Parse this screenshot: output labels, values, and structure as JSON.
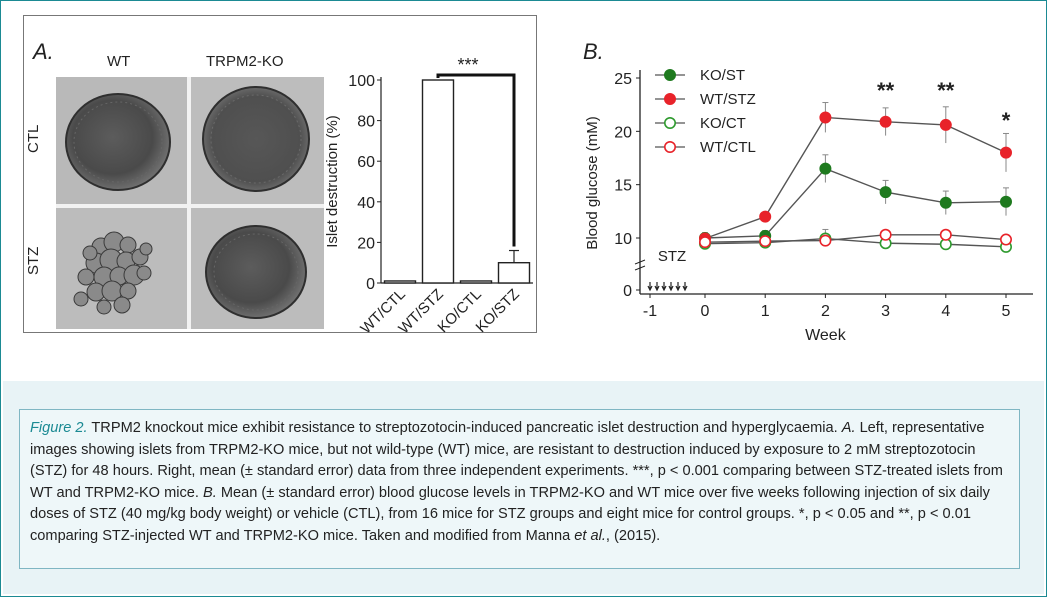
{
  "panel_a": {
    "letter": "A.",
    "col_wt": "WT",
    "col_ko": "TRPM2-KO",
    "row_ctl": "CTL",
    "row_stz": "STZ"
  },
  "panel_b": {
    "letter": "B."
  },
  "chart_data": [
    {
      "type": "bar",
      "ylabel": "Islet destruction (%)",
      "categories": [
        "WT/CTL",
        "WT/STZ",
        "KO/CTL",
        "KO/STZ"
      ],
      "values": [
        1,
        100,
        1,
        10
      ],
      "errors": [
        0,
        0,
        0,
        6
      ],
      "ylim": [
        0,
        100
      ],
      "yticks": [
        "0",
        "20",
        "40",
        "60",
        "80",
        "100"
      ],
      "significance": "***",
      "grid": false
    },
    {
      "type": "line",
      "ylabel": "Blood glucose (mM)",
      "xlabel": "Week",
      "x": [
        0,
        1,
        2,
        3,
        4,
        5
      ],
      "xticks": [
        "-1",
        "0",
        "1",
        "2",
        "3",
        "4",
        "5"
      ],
      "yticks": [
        "0",
        "10",
        "15",
        "20",
        "25"
      ],
      "ylim": [
        0,
        25
      ],
      "treatment_label": "STZ",
      "legend_position": "top-left",
      "series": [
        {
          "name": "KO/ST",
          "values": [
            10.0,
            10.2,
            16.5,
            14.3,
            13.3,
            13.4
          ],
          "errors": [
            0.5,
            0.5,
            1.3,
            1.1,
            1.1,
            1.3
          ],
          "color": "#1f7a1f",
          "filled": true
        },
        {
          "name": "WT/STZ",
          "values": [
            9.9,
            12.0,
            21.3,
            20.9,
            20.6,
            18.0
          ],
          "errors": [
            0.4,
            0.4,
            1.4,
            1.3,
            1.7,
            1.8
          ],
          "color": "#e8232a",
          "filled": true
        },
        {
          "name": "KO/CT",
          "values": [
            8.9,
            9.1,
            9.9,
            9.0,
            8.8,
            8.3
          ],
          "errors": [
            0.4,
            0.4,
            0.9,
            0.4,
            0.4,
            0.4
          ],
          "color": "#2e9a2e",
          "filled": false
        },
        {
          "name": "WT/CTL",
          "values": [
            9.2,
            9.4,
            9.5,
            10.3,
            10.3,
            9.7
          ],
          "errors": [
            0.4,
            0.4,
            0.4,
            0.4,
            0.4,
            0.4
          ],
          "color": "#e8232a",
          "filled": false
        }
      ],
      "annotations": [
        {
          "x": 3,
          "text": "**"
        },
        {
          "x": 4,
          "text": "**"
        },
        {
          "x": 5,
          "text": "*"
        }
      ]
    }
  ],
  "caption": {
    "figure_label": "Figure 2.",
    "title": " TRPM2 knockout mice exhibit resistance to streptozotocin-induced pancreatic islet destruction and hyperglycaemia. ",
    "part_a_label": "A.",
    "part_a_text": " Left, representative images showing islets from TRPM2-KO mice, but not wild-type (WT) mice, are resistant to destruction induced by exposure to 2 mM streptozotocin (STZ) for 48 hours. Right, mean (± standard error) data from three independent experiments. ***, p < 0.001 comparing between STZ-treated islets from WT and TRPM2-KO mice. ",
    "part_b_label": "B.",
    "part_b_text": " Mean (± standard error) blood glucose levels in TRPM2-KO and WT mice over five weeks following injection of six daily doses of STZ (40 mg/kg body weight) or vehicle (CTL), from 16 mice for STZ groups and eight mice for control groups. *, p < 0.05 and **, p < 0.01 comparing STZ-injected WT and TRPM2-KO mice. Taken and modified from Manna ",
    "etal": "et al.",
    "end": ", (2015)."
  }
}
